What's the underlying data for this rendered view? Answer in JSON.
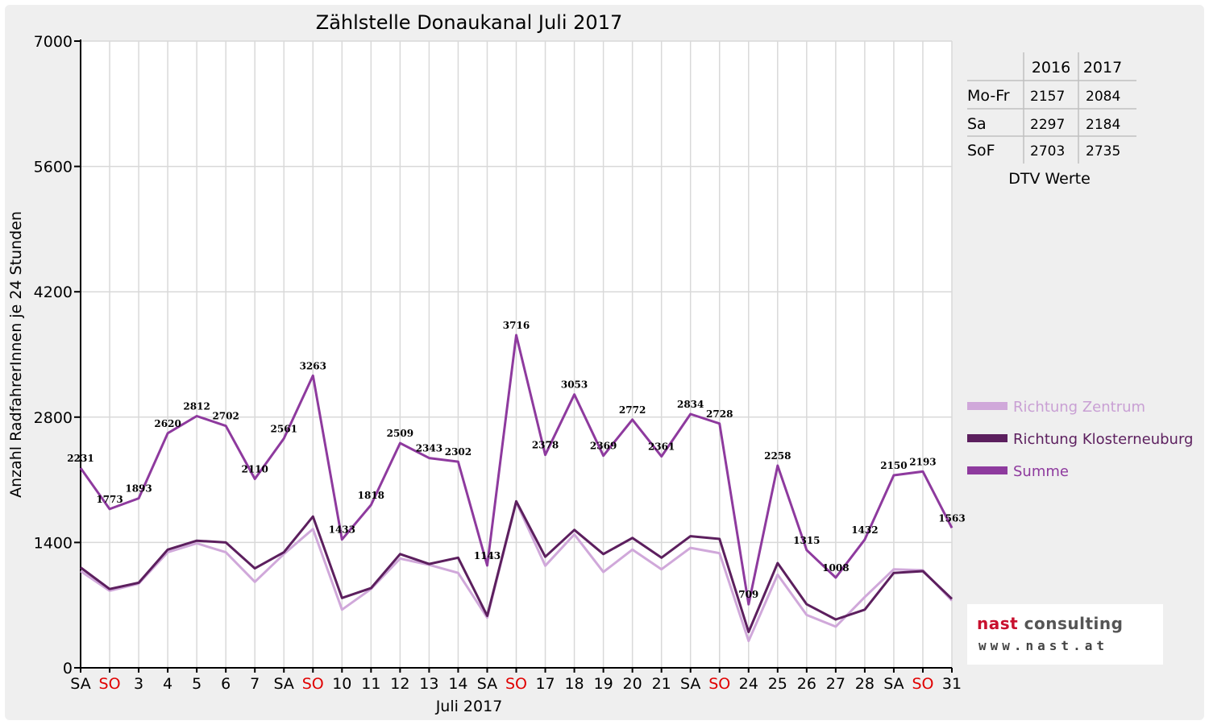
{
  "chart_data": {
    "type": "line",
    "title": "Zählstelle Donaukanal Juli 2017",
    "xlabel": "Juli 2017",
    "ylabel": "Anzahl RadfahrerInnen je 24 Stunden",
    "ylim": [
      0,
      7000
    ],
    "yticks": [
      "0",
      "1400",
      "2800",
      "4200",
      "5600",
      "7000"
    ],
    "grid": true,
    "legend_position": "right",
    "categories": [
      "SA",
      "SO",
      "3",
      "4",
      "5",
      "6",
      "7",
      "SA",
      "SO",
      "10",
      "11",
      "12",
      "13",
      "14",
      "SA",
      "SO",
      "17",
      "18",
      "19",
      "20",
      "21",
      "SA",
      "SO",
      "24",
      "25",
      "26",
      "27",
      "28",
      "SA",
      "SO",
      "31"
    ],
    "sunday_indices": [
      1,
      8,
      15,
      22,
      29
    ],
    "series": [
      {
        "name": "Richtung Zentrum",
        "color": "#d0a8da",
        "values": [
          1080,
          860,
          940,
          1290,
          1390,
          1290,
          960,
          1270,
          1550,
          650,
          880,
          1220,
          1150,
          1060,
          560,
          1850,
          1140,
          1490,
          1070,
          1320,
          1100,
          1340,
          1280,
          300,
          1040,
          590,
          460,
          790,
          1100,
          1090,
          750
        ]
      },
      {
        "name": "Richtung Klosterneuburg",
        "color": "#5c1f5e",
        "values": [
          1120,
          880,
          950,
          1320,
          1420,
          1400,
          1110,
          1290,
          1690,
          780,
          890,
          1270,
          1160,
          1230,
          580,
          1860,
          1240,
          1540,
          1270,
          1450,
          1230,
          1470,
          1440,
          400,
          1170,
          710,
          540,
          650,
          1060,
          1080,
          770
        ]
      },
      {
        "name": "Summe",
        "color": "#8e3a9e",
        "values": [
          2231,
          1773,
          1893,
          2620,
          2812,
          2702,
          2110,
          2561,
          3263,
          1433,
          1818,
          2509,
          2343,
          2302,
          1143,
          3716,
          2378,
          3053,
          2369,
          2772,
          2361,
          2834,
          2728,
          709,
          2258,
          1315,
          1008,
          1432,
          2150,
          2193,
          1563
        ]
      }
    ],
    "data_labels": [
      "2231",
      "1773",
      "1893",
      "2620",
      "2812",
      "2702",
      "2110",
      "2561",
      "3263",
      "1433",
      "1818",
      "2509",
      "2343",
      "2302",
      "1143",
      "3716",
      "2378",
      "3053",
      "2369",
      "2772",
      "2361",
      "2834",
      "2728",
      "709",
      "2258",
      "1315",
      "1008",
      "1432",
      "2150",
      "2193",
      "1563"
    ]
  },
  "dtv_table": {
    "headers": [
      "",
      "2016",
      "2017"
    ],
    "rows": [
      {
        "label": "Mo-Fr",
        "v2016": "2157",
        "v2017": "2084"
      },
      {
        "label": "Sa",
        "v2016": "2297",
        "v2017": "2184"
      },
      {
        "label": "SoF",
        "v2016": "2703",
        "v2017": "2735"
      }
    ],
    "caption": "DTV Werte"
  },
  "logo": {
    "brand": "nast",
    "rest": " consulting",
    "url_text": "www.nast.at"
  }
}
